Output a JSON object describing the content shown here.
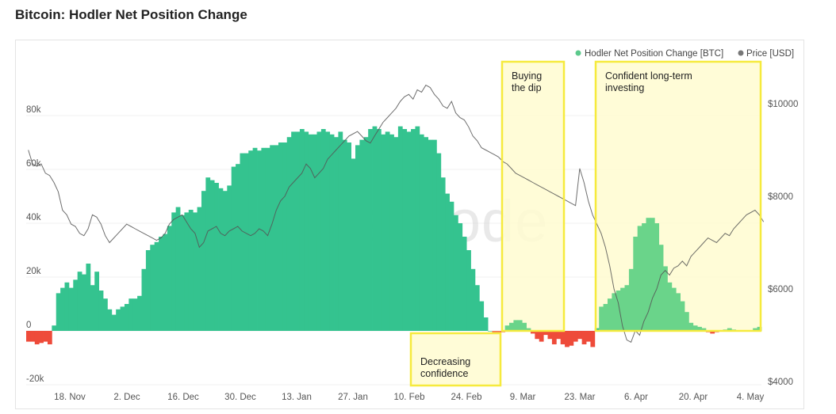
{
  "title": "Bitcoin: Hodler Net Position Change",
  "watermark": "glassnode",
  "chart_data": {
    "type": "bar",
    "legend": [
      {
        "name": "Hodler Net Position Change [BTC]",
        "color": "#5cc98c"
      },
      {
        "name": "Price [USD]",
        "color": "#777777"
      }
    ],
    "legend_position": "top-right",
    "x_tick_labels": [
      "18. Nov",
      "2. Dec",
      "16. Dec",
      "30. Dec",
      "13. Jan",
      "27. Jan",
      "10. Feb",
      "24. Feb",
      "9. Mar",
      "23. Mar",
      "6. Apr",
      "20. Apr",
      "4. May"
    ],
    "y_left_ticks": [
      "-20k",
      "0",
      "20k",
      "40k",
      "60k",
      "80k"
    ],
    "y_left_range": [
      -20000,
      80000
    ],
    "y_right_ticks": [
      "$4000",
      "$6000",
      "$8000",
      "$10000"
    ],
    "y_right_range": [
      4000,
      10000
    ],
    "grid": true,
    "x_start_day": 0,
    "x_end_day": 172,
    "series": [
      {
        "name": "Hodler Net Position Change [BTC]",
        "values": [
          -4000,
          -4000,
          -5000,
          -4500,
          -4000,
          -5000,
          2000,
          14000,
          16000,
          18000,
          16000,
          19000,
          22000,
          21000,
          25000,
          17000,
          22000,
          15000,
          12000,
          8000,
          6000,
          8000,
          9000,
          10000,
          12000,
          12000,
          13000,
          23000,
          30000,
          32000,
          33000,
          35000,
          36000,
          39000,
          44000,
          46000,
          43000,
          44000,
          45000,
          44000,
          46000,
          52000,
          57000,
          56000,
          55000,
          53000,
          52000,
          54000,
          61000,
          62000,
          66000,
          66000,
          67000,
          68000,
          67000,
          68000,
          68000,
          69000,
          69000,
          70000,
          70000,
          72000,
          74000,
          74000,
          75000,
          74000,
          73000,
          73000,
          74000,
          75000,
          74000,
          73000,
          72000,
          74000,
          71000,
          70000,
          64000,
          69000,
          71000,
          72000,
          75000,
          76000,
          75000,
          73000,
          74000,
          73000,
          72000,
          76000,
          75000,
          74000,
          75000,
          76000,
          73000,
          72000,
          71000,
          71000,
          66000,
          57000,
          51000,
          48000,
          43000,
          40000,
          35000,
          30000,
          23000,
          17000,
          11000,
          5000,
          0,
          -1000,
          -800,
          -500,
          2000,
          3000,
          4000,
          4000,
          3000,
          1000,
          -1000,
          -3000,
          -4000,
          -1500,
          -3000,
          -5000,
          -3000,
          -5000,
          -6000,
          -5500,
          -4000,
          -3000,
          -5000,
          -4000,
          -6000,
          1000,
          9000,
          10000,
          12000,
          14000,
          15000,
          16000,
          17000,
          23000,
          35000,
          39000,
          40000,
          42000,
          42000,
          40000,
          32000,
          24000,
          18000,
          16000,
          14000,
          11000,
          7000,
          3000,
          2000,
          1500,
          1000,
          -500,
          -1000,
          -500,
          0,
          500,
          1000,
          500,
          0,
          0,
          0,
          0,
          1000,
          1500
        ],
        "color": "#34c38f"
      },
      {
        "name": "Price [USD]",
        "values": [
          9000,
          8700,
          8650,
          8700,
          8500,
          8450,
          8300,
          8100,
          7700,
          7600,
          7400,
          7350,
          7200,
          7150,
          7300,
          7600,
          7550,
          7400,
          7150,
          7000,
          7100,
          7200,
          7300,
          7400,
          7350,
          7300,
          7250,
          7200,
          7150,
          7100,
          7050,
          7100,
          7200,
          7400,
          7500,
          7550,
          7600,
          7450,
          7300,
          7200,
          6900,
          7000,
          7250,
          7300,
          7350,
          7200,
          7150,
          7250,
          7300,
          7350,
          7250,
          7200,
          7150,
          7200,
          7300,
          7250,
          7150,
          7400,
          7700,
          7900,
          8000,
          8200,
          8300,
          8400,
          8500,
          8700,
          8600,
          8400,
          8500,
          8600,
          8800,
          8900,
          9000,
          9100,
          9200,
          9300,
          9350,
          9400,
          9300,
          9200,
          9150,
          9300,
          9450,
          9600,
          9700,
          9800,
          9900,
          10050,
          10150,
          10200,
          10100,
          10300,
          10250,
          10400,
          10350,
          10200,
          10100,
          9950,
          9900,
          10050,
          9800,
          9700,
          9650,
          9500,
          9300,
          9200,
          9050,
          9000,
          8950,
          8900,
          8850,
          8750,
          8700,
          8600,
          8500,
          8450,
          8400,
          8350,
          8300,
          8250,
          8200,
          8150,
          8100,
          8050,
          8000,
          7950,
          7900,
          7850,
          7800,
          8600,
          8300,
          7900,
          7600,
          7400,
          7200,
          6900,
          6500,
          6000,
          5700,
          5200,
          4900,
          4850,
          5100,
          5000,
          5300,
          5500,
          5800,
          6000,
          6300,
          6400,
          6300,
          6450,
          6500,
          6600,
          6500,
          6700,
          6800,
          6900,
          7000,
          7100,
          7050,
          7000,
          7100,
          7200,
          7150,
          7300,
          7400,
          7500,
          7600,
          7650,
          7700,
          7600,
          7450
        ]
      }
    ],
    "annotations": [
      {
        "label": "Decreasing confidence",
        "lines": [
          "Decreasing",
          "confidence"
        ],
        "x_start": "10. Feb",
        "x_end": "9. Mar"
      },
      {
        "label": "Buying the dip",
        "lines": [
          "Buying",
          "the dip"
        ],
        "x_start": "9. Mar",
        "x_end": "23. Mar"
      },
      {
        "label": "Confident long-term investing",
        "lines": [
          "Confident long-term",
          "investing"
        ],
        "x_start": "23. Mar",
        "x_end": "4. May"
      }
    ]
  }
}
